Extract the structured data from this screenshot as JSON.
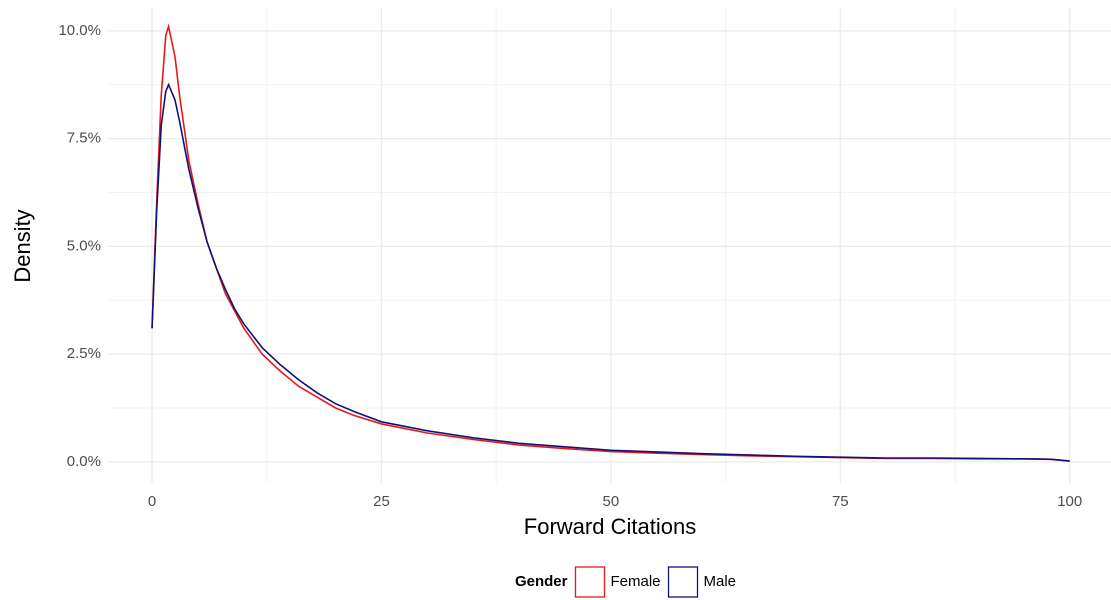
{
  "chart_data": {
    "type": "line",
    "x_label": "Forward Citations",
    "y_label": "Density",
    "legend_title": "Gender",
    "legend_position": "bottom",
    "grid": true,
    "x": [
      0,
      0.5,
      1,
      1.5,
      1.8,
      2.5,
      3,
      4,
      5,
      6,
      7,
      8,
      9,
      10,
      12,
      14,
      16,
      18,
      20,
      22,
      25,
      30,
      35,
      40,
      45,
      50,
      55,
      60,
      65,
      70,
      75,
      80,
      85,
      90,
      95,
      98,
      100
    ],
    "series": [
      {
        "name": "Female",
        "color": "#e31a1c",
        "values": [
          3.1,
          6.0,
          8.5,
          9.9,
          10.1,
          9.4,
          8.5,
          7.0,
          6.0,
          5.1,
          4.5,
          3.9,
          3.5,
          3.1,
          2.5,
          2.1,
          1.75,
          1.5,
          1.25,
          1.08,
          0.88,
          0.67,
          0.52,
          0.39,
          0.31,
          0.24,
          0.2,
          0.17,
          0.14,
          0.12,
          0.1,
          0.08,
          0.08,
          0.07,
          0.07,
          0.06,
          0.02
        ]
      },
      {
        "name": "Male",
        "color": "#11117a",
        "values": [
          3.1,
          5.8,
          7.8,
          8.6,
          8.75,
          8.4,
          7.9,
          6.8,
          5.9,
          5.1,
          4.5,
          4.0,
          3.55,
          3.2,
          2.65,
          2.25,
          1.9,
          1.6,
          1.35,
          1.17,
          0.93,
          0.72,
          0.56,
          0.43,
          0.35,
          0.27,
          0.23,
          0.19,
          0.16,
          0.13,
          0.11,
          0.09,
          0.09,
          0.08,
          0.07,
          0.06,
          0.02
        ]
      }
    ],
    "xlim": [
      -4.8,
      104.5
    ],
    "ylim": [
      -0.49,
      10.53
    ],
    "xticks": [
      0,
      25,
      50,
      75,
      100
    ],
    "yticks": [
      {
        "value": 0,
        "label": "0.0%"
      },
      {
        "value": 2.5,
        "label": "2.5%"
      },
      {
        "value": 5,
        "label": "5.0%"
      },
      {
        "value": 7.5,
        "label": "7.5%"
      },
      {
        "value": 10,
        "label": "10.0%"
      }
    ],
    "x_minor_gridlines": [
      12.5,
      37.5,
      62.5,
      87.5
    ],
    "y_minor_gridlines": [
      1.25,
      3.75,
      6.25,
      8.75
    ]
  }
}
